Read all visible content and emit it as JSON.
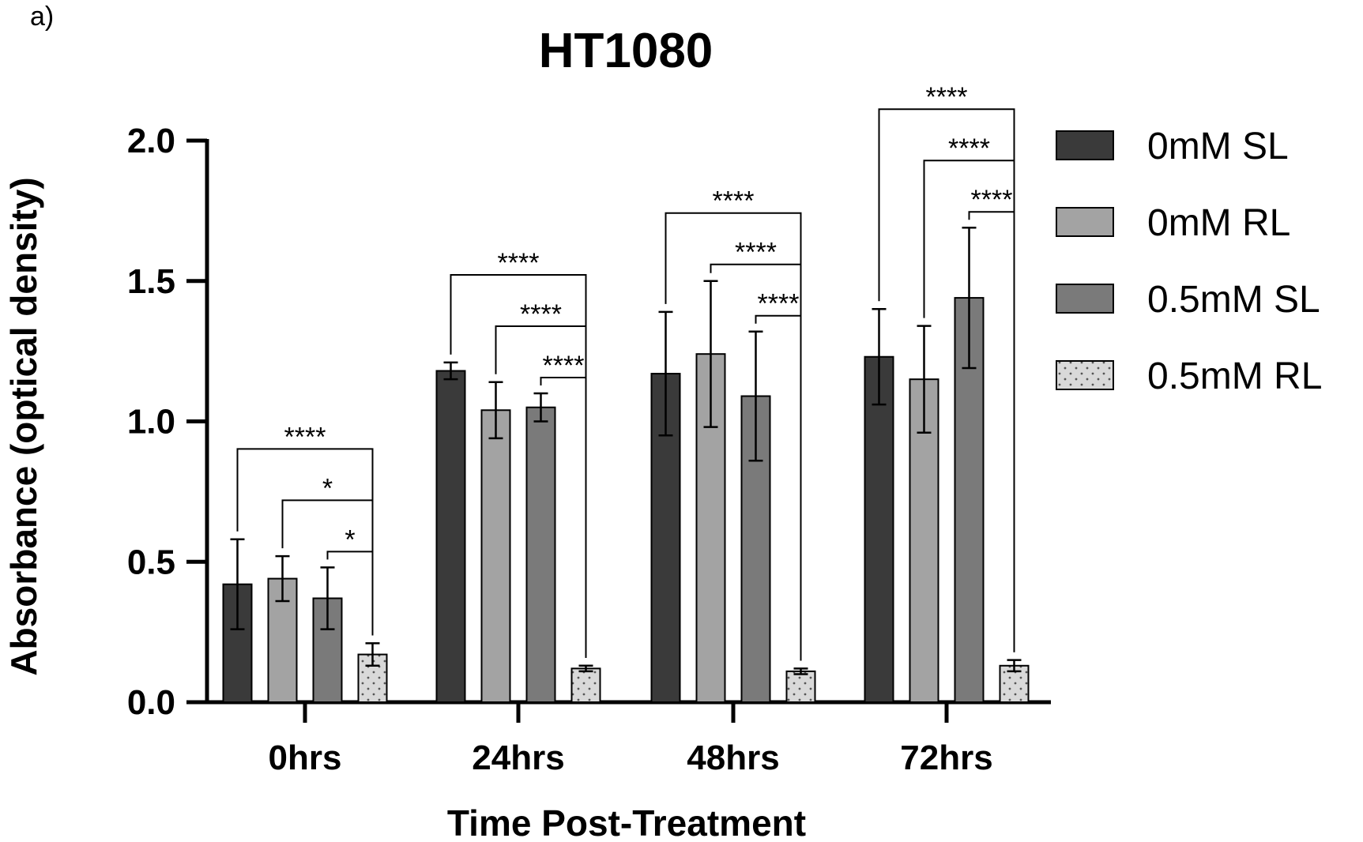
{
  "panel_label": "a)",
  "chart_data": {
    "type": "bar",
    "title": "HT1080",
    "xlabel": "Time Post-Treatment",
    "ylabel": "Absorbance (optical density)",
    "ylim": [
      0,
      2.0
    ],
    "yticks": [
      "0.0",
      "0.5",
      "1.0",
      "1.5",
      "2.0"
    ],
    "categories": [
      "0hrs",
      "24hrs",
      "48hrs",
      "72hrs"
    ],
    "legend_position": "right",
    "series": [
      {
        "name": "0mM SL",
        "color": "#3a3a3a",
        "pattern": "solid",
        "values": [
          0.42,
          1.18,
          1.17,
          1.23
        ],
        "errors": [
          0.16,
          0.03,
          0.22,
          0.17
        ]
      },
      {
        "name": "0mM RL",
        "color": "#a3a3a3",
        "pattern": "solid",
        "values": [
          0.44,
          1.04,
          1.24,
          1.15
        ],
        "errors": [
          0.08,
          0.1,
          0.26,
          0.19
        ]
      },
      {
        "name": "0.5mM SL",
        "color": "#7a7a7a",
        "pattern": "solid",
        "values": [
          0.37,
          1.05,
          1.09,
          1.44
        ],
        "errors": [
          0.11,
          0.05,
          0.23,
          0.25
        ]
      },
      {
        "name": "0.5mM RL",
        "color": "#d9d9d9",
        "pattern": "dotted",
        "values": [
          0.17,
          0.12,
          0.11,
          0.13
        ],
        "errors": [
          0.04,
          0.01,
          0.01,
          0.02
        ]
      }
    ],
    "significance": [
      {
        "category": 0,
        "from_series": 0,
        "to_series": 3,
        "label": "****"
      },
      {
        "category": 0,
        "from_series": 1,
        "to_series": 3,
        "label": "*"
      },
      {
        "category": 0,
        "from_series": 2,
        "to_series": 3,
        "label": "*"
      },
      {
        "category": 1,
        "from_series": 0,
        "to_series": 3,
        "label": "****"
      },
      {
        "category": 1,
        "from_series": 1,
        "to_series": 3,
        "label": "****"
      },
      {
        "category": 1,
        "from_series": 2,
        "to_series": 3,
        "label": "****"
      },
      {
        "category": 2,
        "from_series": 0,
        "to_series": 3,
        "label": "****"
      },
      {
        "category": 2,
        "from_series": 1,
        "to_series": 3,
        "label": "****"
      },
      {
        "category": 2,
        "from_series": 2,
        "to_series": 3,
        "label": "****"
      },
      {
        "category": 3,
        "from_series": 0,
        "to_series": 3,
        "label": "****"
      },
      {
        "category": 3,
        "from_series": 1,
        "to_series": 3,
        "label": "****"
      },
      {
        "category": 3,
        "from_series": 2,
        "to_series": 3,
        "label": "****"
      }
    ]
  }
}
